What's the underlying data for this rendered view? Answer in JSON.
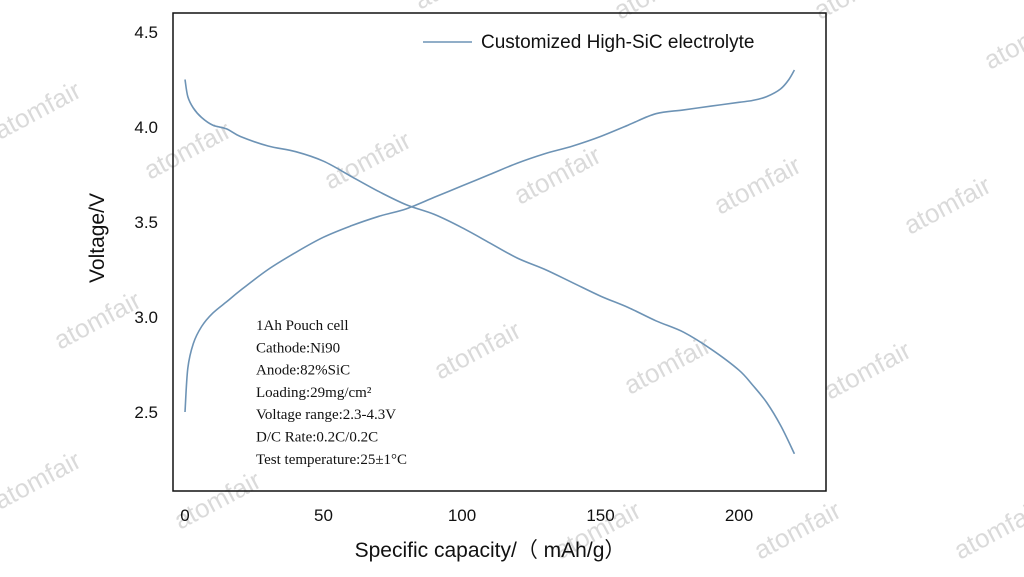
{
  "watermark": "atomfair",
  "chart_data": {
    "type": "line",
    "title": "",
    "xlabel": "Specific capacity/（ mAh/g）",
    "ylabel": "Voltage/V",
    "xlim": [
      -5,
      232
    ],
    "ylim": [
      2.15,
      4.6
    ],
    "xticks": [
      "0",
      "50",
      "100",
      "150",
      "200"
    ],
    "yticks": [
      "2.5",
      "3.0",
      "3.5",
      "4.0",
      "4.5"
    ],
    "grid": false,
    "legend_position": "top-right",
    "legend": [
      "Customized High-SiC electrolyte"
    ],
    "color": "#6d93b5",
    "series": [
      {
        "name": "Customized High-SiC electrolyte",
        "segment": "charge",
        "x": [
          0,
          1,
          3,
          6,
          10,
          15,
          20,
          30,
          40,
          50,
          60,
          70,
          80,
          90,
          100,
          110,
          120,
          130,
          140,
          150,
          160,
          170,
          180,
          190,
          200,
          205,
          210,
          215,
          218,
          220
        ],
        "y": [
          2.5,
          2.73,
          2.86,
          2.95,
          3.02,
          3.08,
          3.14,
          3.25,
          3.34,
          3.42,
          3.48,
          3.53,
          3.57,
          3.63,
          3.69,
          3.75,
          3.81,
          3.86,
          3.9,
          3.95,
          4.01,
          4.07,
          4.09,
          4.11,
          4.13,
          4.14,
          4.16,
          4.2,
          4.25,
          4.3
        ]
      },
      {
        "name": "Customized High-SiC electrolyte",
        "segment": "discharge",
        "x": [
          0,
          1,
          3,
          6,
          10,
          15,
          20,
          30,
          40,
          50,
          60,
          70,
          80,
          90,
          100,
          110,
          120,
          130,
          140,
          150,
          160,
          170,
          180,
          190,
          200,
          205,
          210,
          215,
          220
        ],
        "y": [
          4.25,
          4.16,
          4.1,
          4.05,
          4.01,
          3.99,
          3.95,
          3.9,
          3.87,
          3.82,
          3.74,
          3.66,
          3.59,
          3.54,
          3.47,
          3.39,
          3.31,
          3.25,
          3.18,
          3.11,
          3.05,
          2.98,
          2.92,
          2.83,
          2.72,
          2.64,
          2.55,
          2.43,
          2.28
        ]
      }
    ],
    "annotations": [
      "1Ah Pouch cell",
      "Cathode:Ni90",
      "Anode:82%SiC",
      "Loading:29mg/cm²",
      "Voltage range:2.3-4.3V",
      "D/C Rate:0.2C/0.2C",
      "Test temperature:25±1°C"
    ]
  }
}
